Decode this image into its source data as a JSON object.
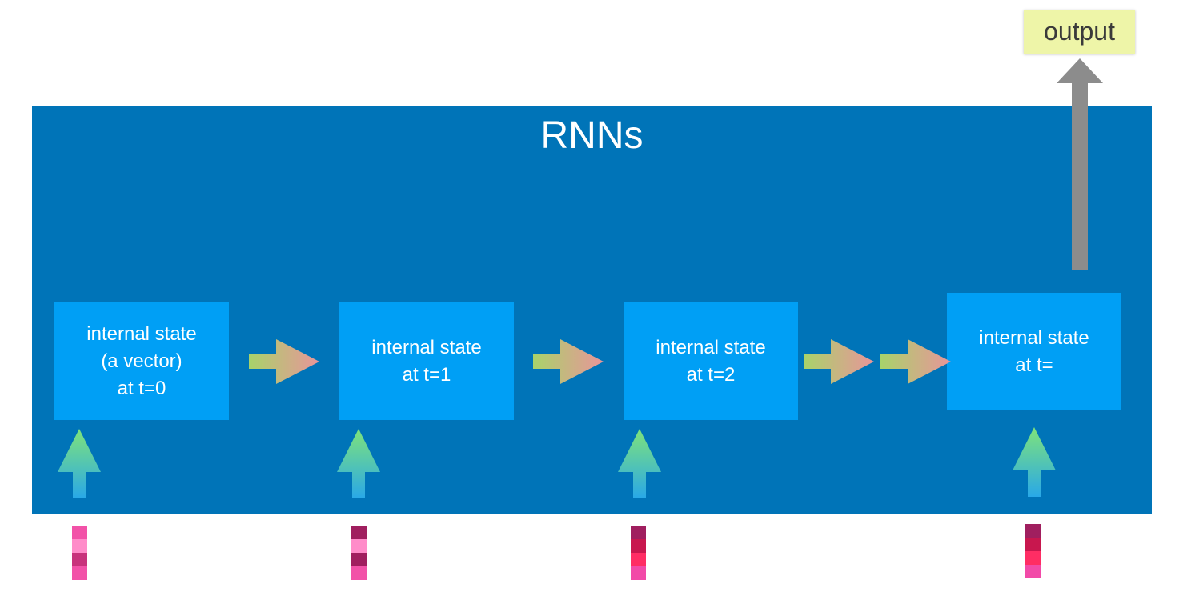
{
  "title": "RNNs",
  "output_label": "output",
  "states": [
    {
      "label": "internal state\n(a vector)\nat t=0"
    },
    {
      "label": "internal state\nat t=1"
    },
    {
      "label": "internal state\nat t=2"
    },
    {
      "label": "internal state\nat t="
    }
  ],
  "colors": {
    "panel": "#0074b8",
    "state_box": "#009ff5",
    "output_box": "#eef5a8",
    "output_arrow": "#8c8c8c",
    "right_arrow_start": "#a8d36a",
    "right_arrow_end": "#e8959a",
    "up_arrow_top": "#7fe37a",
    "up_arrow_bottom": "#29a8e8"
  },
  "input_vectors": [
    {
      "cells": [
        "#f252a8",
        "#ff8cc9",
        "#c8337c",
        "#f252a8"
      ]
    },
    {
      "cells": [
        "#a01f5f",
        "#ff8cc9",
        "#a01f5f",
        "#f252a8"
      ]
    },
    {
      "cells": [
        "#a01f5f",
        "#c8174e",
        "#ff2d64",
        "#f24aa8"
      ]
    },
    {
      "cells": [
        "#a01f5f",
        "#c8174e",
        "#ff2d64",
        "#f24aa8"
      ]
    }
  ]
}
